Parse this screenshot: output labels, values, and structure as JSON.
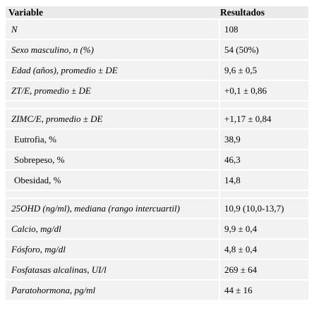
{
  "table": {
    "headers": [
      "Variable",
      "Resultados"
    ],
    "groups": [
      [
        {
          "label": "N",
          "value": "108",
          "italic": true
        },
        {
          "label": "Sexo masculino, n (%)",
          "value": "54 (50%)",
          "italic": true
        },
        {
          "label": "Edad (años), promedio ± DE",
          "value": "9,6 ± 0,5",
          "italic": true
        },
        {
          "label": "ZT/E, promedio ± DE",
          "value": "+0,1 ± 0,86",
          "italic": true
        }
      ],
      [
        {
          "label": "ZIMC/E, promedio ± DE",
          "value": "+1,17 ± 0,84",
          "italic": true
        },
        {
          "label": "Eutrofia, %",
          "value": "38,9",
          "italic": false
        },
        {
          "label": "Sobrepeso, %",
          "value": "46,3",
          "italic": false
        },
        {
          "label": "Obesidad, %",
          "value": "14,8",
          "italic": false
        }
      ],
      [
        {
          "label": "25OHD (ng/ml), mediana (rango intercuartil)",
          "value": "10,9 (10,0-13,7)",
          "italic": true
        },
        {
          "label": "Calcio, mg/dl",
          "value": "9,9 ± 0,4",
          "italic": true
        },
        {
          "label": "Fósforo, mg/dl",
          "value": "4,8 ± 0,4",
          "italic": true
        },
        {
          "label": "Fosfatasas alcalinas, UI/l",
          "value": "269 ± 64",
          "italic": true
        },
        {
          "label": "Paratohormona, pg/ml",
          "value": "44 ± 16",
          "italic": true
        }
      ]
    ]
  }
}
